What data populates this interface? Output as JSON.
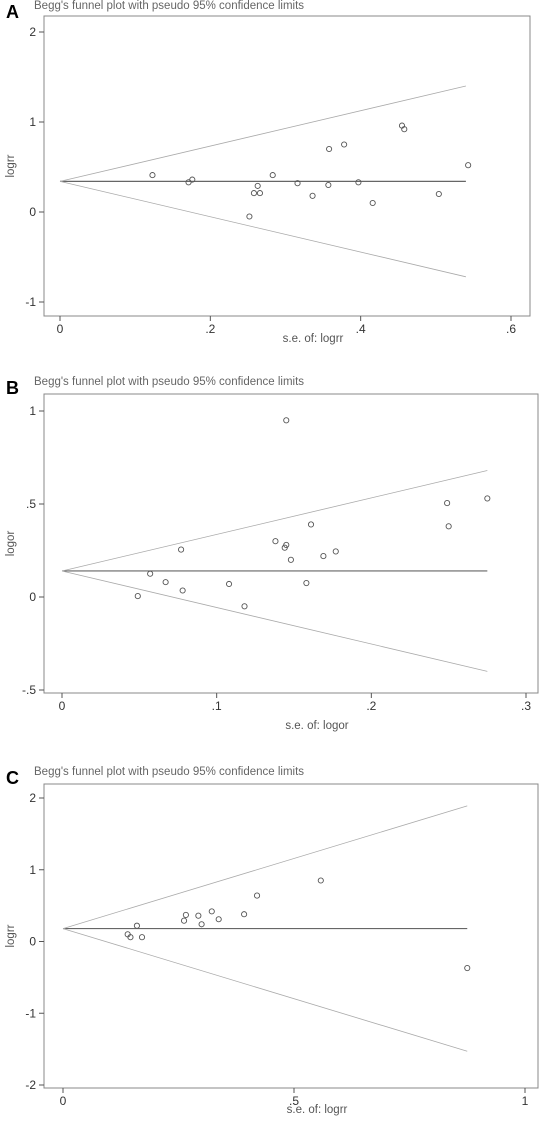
{
  "chart_data": [
    {
      "type": "scatter",
      "panel_label": "A",
      "title": "Begg's funnel plot with pseudo 95% confidence limits",
      "xlabel": "s.e. of: logrr",
      "ylabel": "logrr",
      "xlim": [
        0,
        0.6
      ],
      "ylim": [
        -1,
        2
      ],
      "xticks": [
        0,
        0.2,
        0.4,
        0.6
      ],
      "xtick_labels": [
        "0",
        ".2",
        ".4",
        ".6"
      ],
      "yticks": [
        -1,
        0,
        1,
        2
      ],
      "ytick_labels": [
        "-1",
        "0",
        "1",
        "2"
      ],
      "pooled_estimate": 0.34,
      "funnel_end_x": 0.54,
      "funnel_lower_end_y": -0.72,
      "funnel_upper_end_y": 1.4,
      "points": [
        {
          "x": 0.123,
          "y": 0.41
        },
        {
          "x": 0.171,
          "y": 0.33
        },
        {
          "x": 0.176,
          "y": 0.36
        },
        {
          "x": 0.252,
          "y": -0.05
        },
        {
          "x": 0.258,
          "y": 0.21
        },
        {
          "x": 0.263,
          "y": 0.29
        },
        {
          "x": 0.266,
          "y": 0.21
        },
        {
          "x": 0.283,
          "y": 0.41
        },
        {
          "x": 0.316,
          "y": 0.32
        },
        {
          "x": 0.336,
          "y": 0.18
        },
        {
          "x": 0.357,
          "y": 0.3
        },
        {
          "x": 0.358,
          "y": 0.7
        },
        {
          "x": 0.378,
          "y": 0.75
        },
        {
          "x": 0.397,
          "y": 0.33
        },
        {
          "x": 0.416,
          "y": 0.1
        },
        {
          "x": 0.455,
          "y": 0.96
        },
        {
          "x": 0.458,
          "y": 0.92
        },
        {
          "x": 0.504,
          "y": 0.2
        },
        {
          "x": 0.543,
          "y": 0.52
        }
      ]
    },
    {
      "type": "scatter",
      "panel_label": "B",
      "title": "Begg's funnel plot with pseudo 95% confidence limits",
      "xlabel": "s.e. of: logor",
      "ylabel": "logor",
      "xlim": [
        0,
        0.3
      ],
      "ylim": [
        -0.5,
        1
      ],
      "xticks": [
        0,
        0.1,
        0.2,
        0.3
      ],
      "xtick_labels": [
        "0",
        ".1",
        ".2",
        ".3"
      ],
      "yticks": [
        -0.5,
        0,
        0.5,
        1
      ],
      "ytick_labels": [
        "-.5",
        "0",
        ".5",
        "1"
      ],
      "pooled_estimate": 0.14,
      "funnel_end_x": 0.275,
      "funnel_lower_end_y": -0.4,
      "funnel_upper_end_y": 0.68,
      "points": [
        {
          "x": 0.049,
          "y": 0.005
        },
        {
          "x": 0.057,
          "y": 0.125
        },
        {
          "x": 0.067,
          "y": 0.08
        },
        {
          "x": 0.077,
          "y": 0.255
        },
        {
          "x": 0.078,
          "y": 0.035
        },
        {
          "x": 0.108,
          "y": 0.07
        },
        {
          "x": 0.118,
          "y": -0.05
        },
        {
          "x": 0.138,
          "y": 0.3
        },
        {
          "x": 0.144,
          "y": 0.265
        },
        {
          "x": 0.145,
          "y": 0.28
        },
        {
          "x": 0.145,
          "y": 0.95
        },
        {
          "x": 0.148,
          "y": 0.2
        },
        {
          "x": 0.158,
          "y": 0.075
        },
        {
          "x": 0.161,
          "y": 0.39
        },
        {
          "x": 0.169,
          "y": 0.22
        },
        {
          "x": 0.177,
          "y": 0.245
        },
        {
          "x": 0.249,
          "y": 0.505
        },
        {
          "x": 0.25,
          "y": 0.38
        },
        {
          "x": 0.275,
          "y": 0.53
        }
      ]
    },
    {
      "type": "scatter",
      "panel_label": "C",
      "title": "Begg's funnel plot with pseudo 95% confidence limits",
      "xlabel": "s.e. of: logrr",
      "ylabel": "logrr",
      "xlim": [
        0,
        1
      ],
      "ylim": [
        -2,
        2
      ],
      "xticks": [
        0,
        0.5,
        1
      ],
      "xtick_labels": [
        "0",
        ".5",
        "1"
      ],
      "yticks": [
        -2,
        -1,
        0,
        1,
        2
      ],
      "ytick_labels": [
        "-2",
        "-1",
        "0",
        "1",
        "2"
      ],
      "pooled_estimate": 0.18,
      "funnel_end_x": 0.875,
      "funnel_lower_end_y": -1.53,
      "funnel_upper_end_y": 1.89,
      "points": [
        {
          "x": 0.14,
          "y": 0.1
        },
        {
          "x": 0.146,
          "y": 0.06
        },
        {
          "x": 0.16,
          "y": 0.22
        },
        {
          "x": 0.171,
          "y": 0.06
        },
        {
          "x": 0.262,
          "y": 0.29
        },
        {
          "x": 0.266,
          "y": 0.37
        },
        {
          "x": 0.293,
          "y": 0.36
        },
        {
          "x": 0.3,
          "y": 0.24
        },
        {
          "x": 0.322,
          "y": 0.42
        },
        {
          "x": 0.337,
          "y": 0.31
        },
        {
          "x": 0.392,
          "y": 0.38
        },
        {
          "x": 0.42,
          "y": 0.64
        },
        {
          "x": 0.558,
          "y": 0.85
        },
        {
          "x": 0.875,
          "y": -0.37
        }
      ]
    }
  ]
}
